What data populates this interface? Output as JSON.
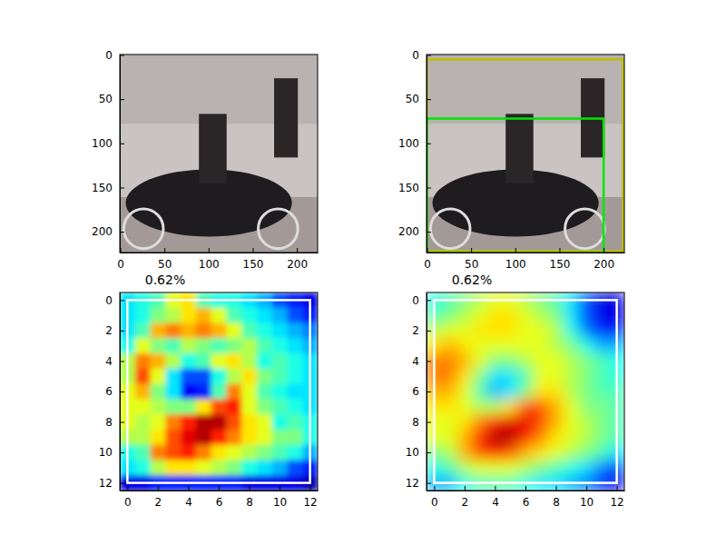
{
  "chart_data": [
    {
      "type": "image",
      "xlim": [
        -0.5,
        223.5
      ],
      "ylim": [
        223.5,
        -0.5
      ],
      "xticks": [
        0,
        50,
        100,
        150,
        200
      ],
      "yticks": [
        0,
        50,
        100,
        150,
        200
      ]
    },
    {
      "type": "image",
      "xlim": [
        -0.5,
        223.5
      ],
      "ylim": [
        223.5,
        -0.5
      ],
      "xticks": [
        0,
        50,
        100,
        150,
        200
      ],
      "yticks": [
        0,
        50,
        100,
        150,
        200
      ],
      "boxes": [
        {
          "color": "#bfbf00",
          "x": [
            0,
            222
          ],
          "y": [
            5,
            222
          ]
        },
        {
          "color": "#00e600",
          "x": [
            0,
            200
          ],
          "y": [
            72,
            224
          ]
        }
      ]
    },
    {
      "type": "heatmap",
      "title": "0.62%",
      "xlim": [
        -0.5,
        12.5
      ],
      "ylim": [
        12.5,
        -0.5
      ],
      "xticks": [
        0,
        2,
        4,
        6,
        8,
        10,
        12
      ],
      "yticks": [
        0,
        2,
        4,
        6,
        8,
        10,
        12
      ],
      "zlim": [
        0,
        1
      ],
      "boxes": [
        {
          "color": "#ffffff",
          "x": [
            0,
            12
          ],
          "y": [
            0,
            12
          ]
        }
      ],
      "cells": [
        [
          0.35,
          0.4,
          0.45,
          0.6,
          0.65,
          0.45,
          0.4,
          0.4,
          0.35,
          0.3,
          0.2,
          0.15,
          0.1
        ],
        [
          0.35,
          0.4,
          0.5,
          0.55,
          0.65,
          0.7,
          0.6,
          0.45,
          0.4,
          0.35,
          0.3,
          0.2,
          0.15
        ],
        [
          0.35,
          0.45,
          0.7,
          0.75,
          0.7,
          0.75,
          0.7,
          0.6,
          0.45,
          0.4,
          0.35,
          0.3,
          0.25
        ],
        [
          0.4,
          0.6,
          0.5,
          0.45,
          0.55,
          0.5,
          0.45,
          0.5,
          0.55,
          0.45,
          0.4,
          0.35,
          0.3
        ],
        [
          0.55,
          0.75,
          0.7,
          0.55,
          0.4,
          0.45,
          0.6,
          0.65,
          0.55,
          0.4,
          0.45,
          0.4,
          0.35
        ],
        [
          0.55,
          0.8,
          0.6,
          0.35,
          0.2,
          0.2,
          0.4,
          0.55,
          0.65,
          0.5,
          0.45,
          0.4,
          0.35
        ],
        [
          0.6,
          0.7,
          0.5,
          0.35,
          0.12,
          0.15,
          0.45,
          0.75,
          0.6,
          0.45,
          0.4,
          0.35,
          0.35
        ],
        [
          0.6,
          0.6,
          0.55,
          0.5,
          0.5,
          0.65,
          0.8,
          0.85,
          0.6,
          0.5,
          0.45,
          0.4,
          0.35
        ],
        [
          0.6,
          0.55,
          0.6,
          0.75,
          0.85,
          0.95,
          0.95,
          0.8,
          0.65,
          0.6,
          0.4,
          0.45,
          0.4
        ],
        [
          0.55,
          0.55,
          0.65,
          0.8,
          0.9,
          0.95,
          0.85,
          0.75,
          0.65,
          0.6,
          0.5,
          0.5,
          0.4
        ],
        [
          0.4,
          0.45,
          0.75,
          0.8,
          0.85,
          0.75,
          0.65,
          0.6,
          0.55,
          0.5,
          0.45,
          0.4,
          0.3
        ],
        [
          0.35,
          0.4,
          0.55,
          0.65,
          0.65,
          0.6,
          0.55,
          0.5,
          0.4,
          0.35,
          0.3,
          0.2,
          0.15
        ],
        [
          0.1,
          0.1,
          0.15,
          0.15,
          0.15,
          0.15,
          0.15,
          0.15,
          0.1,
          0.1,
          0.1,
          0.1,
          0.05
        ]
      ]
    },
    {
      "type": "heatmap",
      "title": "0.62%",
      "xlim": [
        -0.5,
        12.5
      ],
      "ylim": [
        12.5,
        -0.5
      ],
      "xticks": [
        0,
        2,
        4,
        6,
        8,
        10,
        12
      ],
      "yticks": [
        0,
        2,
        4,
        6,
        8,
        10,
        12
      ],
      "zlim": [
        0,
        1
      ],
      "boxes": [
        {
          "color": "#ffffff",
          "x": [
            0,
            12
          ],
          "y": [
            0,
            12
          ]
        }
      ],
      "cells": [
        [
          0.4,
          0.45,
          0.5,
          0.55,
          0.6,
          0.6,
          0.55,
          0.5,
          0.45,
          0.35,
          0.2,
          0.1,
          0.1
        ],
        [
          0.45,
          0.5,
          0.55,
          0.6,
          0.65,
          0.65,
          0.6,
          0.55,
          0.5,
          0.35,
          0.2,
          0.1,
          0.1
        ],
        [
          0.55,
          0.6,
          0.6,
          0.65,
          0.65,
          0.65,
          0.6,
          0.6,
          0.55,
          0.4,
          0.25,
          0.15,
          0.15
        ],
        [
          0.65,
          0.7,
          0.65,
          0.6,
          0.6,
          0.6,
          0.6,
          0.6,
          0.55,
          0.5,
          0.4,
          0.3,
          0.3
        ],
        [
          0.75,
          0.75,
          0.7,
          0.6,
          0.5,
          0.5,
          0.55,
          0.6,
          0.6,
          0.55,
          0.5,
          0.45,
          0.4
        ],
        [
          0.75,
          0.75,
          0.65,
          0.5,
          0.35,
          0.35,
          0.45,
          0.6,
          0.6,
          0.55,
          0.5,
          0.45,
          0.4
        ],
        [
          0.7,
          0.7,
          0.6,
          0.45,
          0.3,
          0.35,
          0.5,
          0.65,
          0.65,
          0.55,
          0.5,
          0.45,
          0.45
        ],
        [
          0.65,
          0.65,
          0.6,
          0.55,
          0.55,
          0.65,
          0.8,
          0.8,
          0.7,
          0.6,
          0.5,
          0.5,
          0.45
        ],
        [
          0.6,
          0.6,
          0.65,
          0.75,
          0.85,
          0.9,
          0.9,
          0.8,
          0.7,
          0.6,
          0.55,
          0.5,
          0.45
        ],
        [
          0.6,
          0.6,
          0.7,
          0.85,
          0.95,
          0.95,
          0.85,
          0.75,
          0.65,
          0.6,
          0.55,
          0.5,
          0.45
        ],
        [
          0.5,
          0.55,
          0.7,
          0.8,
          0.85,
          0.8,
          0.7,
          0.65,
          0.6,
          0.55,
          0.5,
          0.45,
          0.35
        ],
        [
          0.4,
          0.45,
          0.55,
          0.6,
          0.6,
          0.6,
          0.55,
          0.5,
          0.45,
          0.4,
          0.35,
          0.25,
          0.2
        ],
        [
          0.3,
          0.3,
          0.4,
          0.45,
          0.45,
          0.45,
          0.4,
          0.35,
          0.35,
          0.3,
          0.25,
          0.15,
          0.1
        ]
      ]
    }
  ]
}
